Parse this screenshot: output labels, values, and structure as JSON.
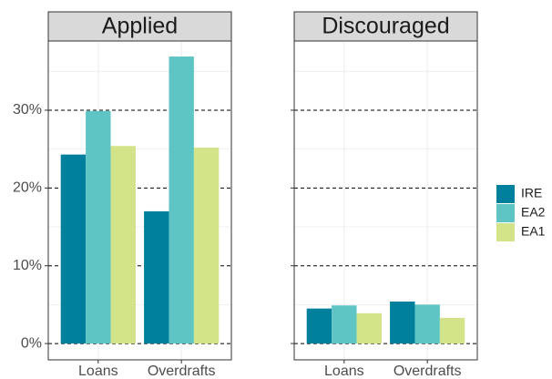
{
  "chart_data": [
    {
      "type": "bar",
      "title": "Applied",
      "categories": [
        "Loans",
        "Overdrafts"
      ],
      "series": [
        {
          "name": "IRE",
          "color": "#00809d",
          "values": [
            24.3,
            17.0
          ]
        },
        {
          "name": "EA2",
          "color": "#5ec5c4",
          "values": [
            29.9,
            36.9
          ]
        },
        {
          "name": "EA1",
          "color": "#d3e38a",
          "values": [
            25.4,
            25.2
          ]
        }
      ],
      "ylim": [
        -2.1,
        38.9
      ],
      "yticks": [
        {
          "value": 0,
          "label": "0%"
        },
        {
          "value": 10,
          "label": "10%"
        },
        {
          "value": 20,
          "label": "20%"
        },
        {
          "value": 30,
          "label": "30%"
        }
      ],
      "minor_yticks": [
        5,
        15,
        25,
        35
      ],
      "grid": true
    },
    {
      "type": "bar",
      "title": "Discouraged",
      "categories": [
        "Loans",
        "Overdrafts"
      ],
      "series": [
        {
          "color": "#00809d",
          "values": [
            4.5,
            5.4
          ]
        },
        {
          "color": "#5ec5c4",
          "values": [
            4.9,
            5.0
          ]
        },
        {
          "color": "#d3e38a",
          "values": [
            3.9,
            3.3
          ]
        }
      ],
      "ylim": [
        -2.1,
        38.9
      ],
      "yticks": [
        0,
        10,
        20,
        30
      ],
      "minor_yticks": [
        5,
        15,
        25,
        35
      ],
      "grid": true
    }
  ]
}
